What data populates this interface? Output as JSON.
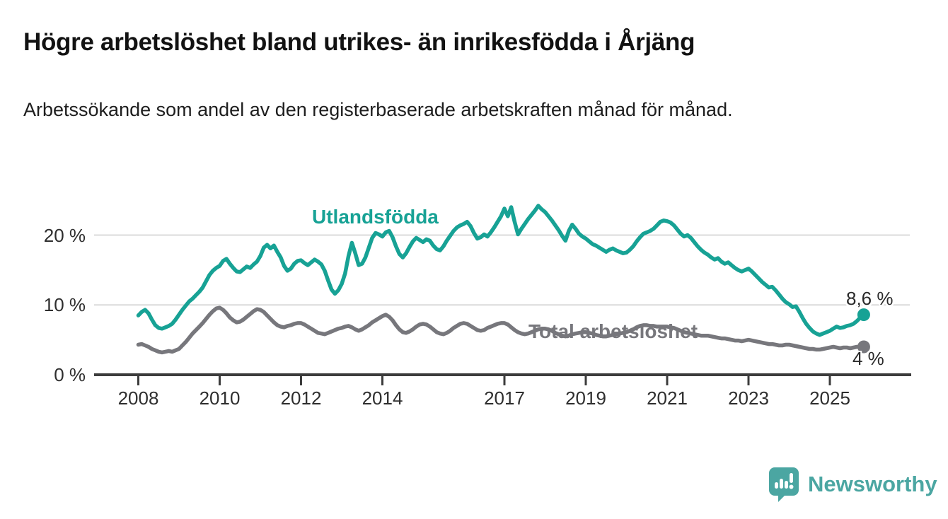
{
  "title": "Högre arbetslöshet bland utrikes- än inrikesfödda i Årjäng",
  "subtitle": "Arbetssökande som andel av den registerbaserade arbetskraften månad för månad.",
  "branding": {
    "logo_text": "Newsworthy",
    "logo_icon": "bar-chart-speech-bubble-icon",
    "logo_color": "#4ba6a2"
  },
  "colors": {
    "utlandsfodda_line": "#17a295",
    "total_line": "#77777c",
    "axis": "#3c3c3c",
    "gridline": "#dbdbdb",
    "tick_text": "#2e2e2e",
    "title_text": "#121212"
  },
  "chart_data": {
    "type": "line",
    "title": "Högre arbetslöshet bland utrikes- än inrikesfödda i Årjäng",
    "subtitle": "Arbetssökande som andel av den registerbaserade arbetskraften månad för månad.",
    "unit": "%",
    "frequency": "monthly",
    "start_month": "2008-01",
    "end_month": "2025-11",
    "grid": "horizontal",
    "legend_position": "inline-labels",
    "ylim": [
      0,
      26
    ],
    "y_ticks": [
      {
        "label": "0 %",
        "value": 0
      },
      {
        "label": "10 %",
        "value": 10
      },
      {
        "label": "20 %",
        "value": 20
      }
    ],
    "x_ticks": [
      {
        "label": "2008",
        "year": 2008
      },
      {
        "label": "2010",
        "year": 2010
      },
      {
        "label": "2012",
        "year": 2012
      },
      {
        "label": "2014",
        "year": 2014
      },
      {
        "label": "2017",
        "year": 2017
      },
      {
        "label": "2019",
        "year": 2019
      },
      {
        "label": "2021",
        "year": 2021
      },
      {
        "label": "2023",
        "year": 2023
      },
      {
        "label": "2025",
        "year": 2025
      }
    ],
    "series": [
      {
        "name": "Utlandsfödda",
        "color": "#17a295",
        "end_value_label": "8,6 %",
        "values": [
          8.5,
          9.0,
          9.3,
          8.8,
          7.9,
          7.1,
          6.7,
          6.6,
          6.8,
          7.0,
          7.3,
          7.9,
          8.6,
          9.3,
          9.9,
          10.5,
          10.9,
          11.4,
          11.9,
          12.5,
          13.4,
          14.3,
          14.9,
          15.3,
          15.6,
          16.3,
          16.6,
          15.9,
          15.3,
          14.8,
          14.7,
          15.1,
          15.5,
          15.3,
          15.8,
          16.2,
          17.0,
          18.2,
          18.6,
          18.1,
          18.5,
          17.6,
          16.8,
          15.6,
          14.9,
          15.2,
          15.9,
          16.3,
          16.4,
          16.0,
          15.7,
          16.1,
          16.5,
          16.2,
          15.8,
          14.9,
          13.5,
          12.2,
          11.6,
          12.1,
          13.0,
          14.5,
          17.0,
          18.9,
          17.4,
          15.7,
          15.9,
          16.8,
          18.2,
          19.6,
          20.3,
          20.1,
          19.8,
          20.4,
          20.6,
          19.7,
          18.4,
          17.3,
          16.8,
          17.4,
          18.3,
          19.1,
          19.6,
          19.3,
          19.0,
          19.4,
          19.2,
          18.5,
          18.0,
          17.8,
          18.4,
          19.2,
          19.9,
          20.6,
          21.1,
          21.4,
          21.6,
          21.9,
          21.3,
          20.3,
          19.5,
          19.7,
          20.1,
          19.8,
          20.4,
          21.1,
          21.9,
          22.7,
          23.8,
          22.7,
          24.0,
          21.9,
          20.1,
          20.9,
          21.6,
          22.3,
          22.9,
          23.5,
          24.2,
          23.7,
          23.3,
          22.7,
          22.1,
          21.4,
          20.7,
          19.9,
          19.2,
          20.6,
          21.5,
          20.9,
          20.2,
          19.8,
          19.5,
          19.1,
          18.7,
          18.5,
          18.2,
          17.9,
          17.6,
          17.9,
          18.1,
          17.8,
          17.6,
          17.4,
          17.5,
          17.9,
          18.4,
          19.1,
          19.7,
          20.2,
          20.4,
          20.6,
          20.9,
          21.4,
          21.9,
          22.1,
          22.0,
          21.8,
          21.4,
          20.8,
          20.2,
          19.8,
          20.0,
          19.6,
          19.0,
          18.4,
          17.9,
          17.5,
          17.2,
          16.8,
          16.5,
          16.7,
          16.2,
          15.9,
          16.1,
          15.7,
          15.3,
          15.0,
          14.8,
          15.0,
          15.2,
          14.8,
          14.3,
          13.8,
          13.3,
          12.9,
          12.5,
          12.6,
          12.1,
          11.5,
          10.9,
          10.4,
          10.1,
          9.7,
          9.8,
          9.0,
          8.1,
          7.3,
          6.7,
          6.2,
          5.9,
          5.7,
          5.9,
          6.1,
          6.3,
          6.6,
          6.9,
          6.7,
          6.8,
          7.0,
          7.1,
          7.3,
          7.7,
          8.2,
          8.6
        ]
      },
      {
        "name": "Total arbetslöshet",
        "color": "#77777c",
        "end_value_label": "4 %",
        "values": [
          4.3,
          4.4,
          4.2,
          4.0,
          3.7,
          3.5,
          3.3,
          3.2,
          3.3,
          3.4,
          3.3,
          3.5,
          3.7,
          4.2,
          4.7,
          5.3,
          5.9,
          6.4,
          6.9,
          7.4,
          8.0,
          8.6,
          9.1,
          9.5,
          9.6,
          9.3,
          8.8,
          8.2,
          7.8,
          7.5,
          7.6,
          7.9,
          8.3,
          8.7,
          9.1,
          9.4,
          9.3,
          9.0,
          8.5,
          8.0,
          7.5,
          7.1,
          6.9,
          6.8,
          7.0,
          7.1,
          7.3,
          7.4,
          7.4,
          7.2,
          6.9,
          6.6,
          6.3,
          6.0,
          5.9,
          5.8,
          6.0,
          6.2,
          6.4,
          6.6,
          6.7,
          6.9,
          7.0,
          6.8,
          6.5,
          6.3,
          6.5,
          6.8,
          7.1,
          7.5,
          7.8,
          8.1,
          8.4,
          8.6,
          8.3,
          7.8,
          7.1,
          6.5,
          6.1,
          6.0,
          6.2,
          6.5,
          6.9,
          7.2,
          7.3,
          7.2,
          6.9,
          6.5,
          6.1,
          5.9,
          5.8,
          6.0,
          6.3,
          6.7,
          7.0,
          7.3,
          7.4,
          7.3,
          7.0,
          6.7,
          6.4,
          6.3,
          6.4,
          6.7,
          6.9,
          7.1,
          7.3,
          7.4,
          7.4,
          7.2,
          6.8,
          6.4,
          6.1,
          5.9,
          5.8,
          5.9,
          6.1,
          6.3,
          6.5,
          6.6,
          6.6,
          6.5,
          6.3,
          6.0,
          5.8,
          5.6,
          5.5,
          5.6,
          5.8,
          5.9,
          6.0,
          6.1,
          6.1,
          6.0,
          5.9,
          5.7,
          5.6,
          5.5,
          5.5,
          5.6,
          5.7,
          5.8,
          5.9,
          6.0,
          6.1,
          6.3,
          6.5,
          6.8,
          7.0,
          7.1,
          7.1,
          7.0,
          7.0,
          6.9,
          6.9,
          6.9,
          6.9,
          6.8,
          6.7,
          6.5,
          6.3,
          6.1,
          6.0,
          5.9,
          5.8,
          5.7,
          5.6,
          5.6,
          5.6,
          5.5,
          5.4,
          5.3,
          5.2,
          5.2,
          5.1,
          5.0,
          4.9,
          4.9,
          4.8,
          4.9,
          5.0,
          4.9,
          4.8,
          4.7,
          4.6,
          4.5,
          4.4,
          4.4,
          4.3,
          4.2,
          4.2,
          4.3,
          4.3,
          4.2,
          4.1,
          4.0,
          3.9,
          3.8,
          3.7,
          3.7,
          3.6,
          3.6,
          3.7,
          3.8,
          3.9,
          4.0,
          3.9,
          3.8,
          3.9,
          3.9,
          3.8,
          3.9,
          4.0,
          4.0,
          4.0
        ]
      }
    ],
    "end_labels": [
      {
        "text": "8,6 %",
        "series": "Utlandsfödda"
      },
      {
        "text": "4 %",
        "series": "Total arbetslöshet"
      }
    ]
  }
}
